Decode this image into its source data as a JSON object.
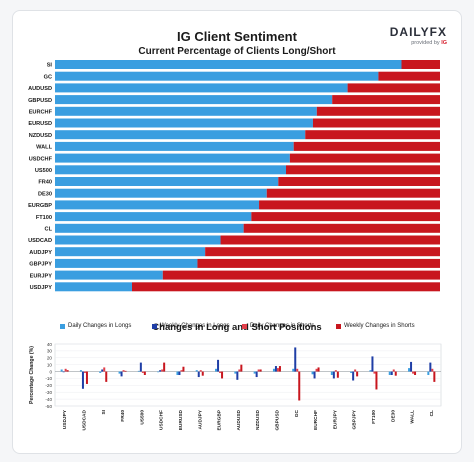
{
  "title": "IG Client Sentiment",
  "subtitle": "Current Percentage of Clients Long/Short",
  "brand": {
    "logo": "DAILYFX",
    "tagline": "provided by",
    "tagline_brand": "IG"
  },
  "colors": {
    "long": "#3a9ee0",
    "short": "#c8161e",
    "weekly_long": "#1f3ea6",
    "daily_short": "#e2404b"
  },
  "chart_data": [
    {
      "type": "bar",
      "orientation": "horizontal",
      "stacked": true,
      "title": "Current Percentage of Clients Long/Short",
      "categories": [
        "SI",
        "GC",
        "AUDUSD",
        "GBPUSD",
        "EURCHF",
        "EURUSD",
        "NZDUSD",
        "WALL",
        "USDCHF",
        "US500",
        "FR40",
        "DE30",
        "EURGBP",
        "FT100",
        "CL",
        "USDCAD",
        "AUDJPY",
        "GBPJPY",
        "EURJPY",
        "USDJPY"
      ],
      "series": [
        {
          "name": "Long",
          "values": [
            90,
            84,
            76,
            72,
            68,
            67,
            65,
            62,
            61,
            60,
            58,
            55,
            53,
            51,
            49,
            43,
            39,
            37,
            28,
            20
          ]
        },
        {
          "name": "Short",
          "values": [
            10,
            16,
            24,
            28,
            32,
            33,
            35,
            38,
            39,
            40,
            42,
            45,
            47,
            49,
            51,
            57,
            61,
            63,
            72,
            80
          ]
        }
      ],
      "xlim": [
        0,
        100
      ]
    },
    {
      "type": "bar",
      "title": "Changes in Long and Short Positions",
      "ylabel": "Percentage Change (%)",
      "ylim": [
        -50,
        40
      ],
      "yticks": [
        40,
        30,
        20,
        10,
        0,
        -10,
        -20,
        -30,
        -40,
        -50
      ],
      "categories": [
        "USDJPY",
        "USDCAD",
        "SI",
        "FR40",
        "US500",
        "USDCHF",
        "EURUSD",
        "AUDJPY",
        "EURGBP",
        "AUDUSD",
        "NZDUSD",
        "GBPUSD",
        "GC",
        "EURCHF",
        "EURJPY",
        "GBPJPY",
        "FT100",
        "DE30",
        "WALL",
        "CL"
      ],
      "series": [
        {
          "name": "Daily Changes in Longs",
          "values": [
            3,
            2,
            -2,
            -3,
            1,
            -1,
            -5,
            2,
            4,
            -3,
            -3,
            4,
            4,
            -4,
            -5,
            -2,
            2,
            -5,
            5,
            -5
          ]
        },
        {
          "name": "Weekly Changes in Longs",
          "values": [
            -1,
            -25,
            3,
            -7,
            13,
            2,
            -5,
            -8,
            17,
            -12,
            -8,
            8,
            35,
            -10,
            -10,
            -13,
            22,
            -5,
            14,
            13
          ]
        },
        {
          "name": "Daily Changes in Shorts",
          "values": [
            4,
            -2,
            6,
            2,
            -2,
            3,
            2,
            2,
            -2,
            3,
            3,
            5,
            4,
            4,
            2,
            3,
            -3,
            3,
            -3,
            4
          ]
        },
        {
          "name": "Weekly Changes in Shorts",
          "values": [
            2,
            -18,
            -15,
            1,
            -5,
            13,
            7,
            -6,
            -10,
            10,
            3,
            8,
            -42,
            6,
            -9,
            -7,
            -26,
            -6,
            -5,
            -15
          ]
        }
      ]
    }
  ]
}
